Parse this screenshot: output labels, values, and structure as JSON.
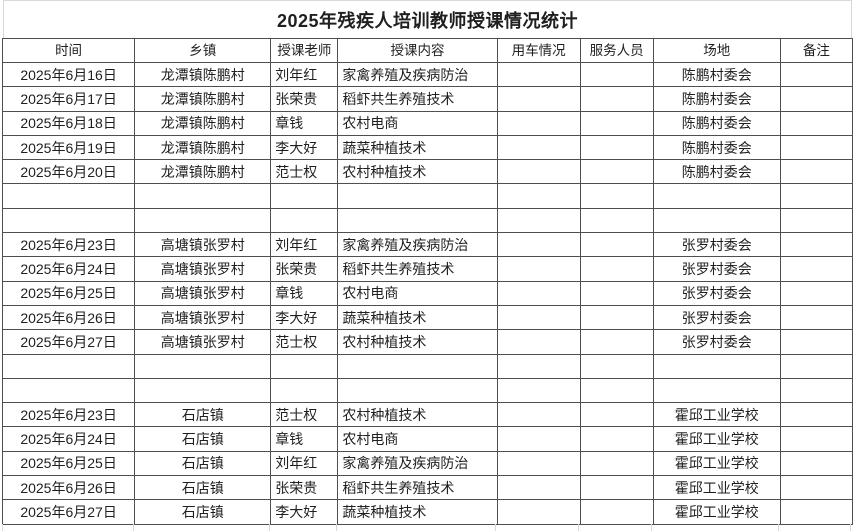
{
  "title": "2025年残疾人培训教师授课情况统计",
  "table": {
    "columns": [
      "时间",
      "乡镇",
      "授课老师",
      "授课内容",
      "用车情况",
      "服务人员",
      "场地",
      "备注"
    ],
    "rows": [
      [
        "2025年6月16日",
        "龙潭镇陈鹏村",
        "刘年红",
        "家禽养殖及疾病防治",
        "",
        "",
        "陈鹏村委会",
        ""
      ],
      [
        "2025年6月17日",
        "龙潭镇陈鹏村",
        "张荣贵",
        "稻虾共生养殖技术",
        "",
        "",
        "陈鹏村委会",
        ""
      ],
      [
        "2025年6月18日",
        "龙潭镇陈鹏村",
        "章钱",
        "农村电商",
        "",
        "",
        "陈鹏村委会",
        ""
      ],
      [
        "2025年6月19日",
        "龙潭镇陈鹏村",
        "李大好",
        "蔬菜种植技术",
        "",
        "",
        "陈鹏村委会",
        ""
      ],
      [
        "2025年6月20日",
        "龙潭镇陈鹏村",
        "范士权",
        "农村种植技术",
        "",
        "",
        "陈鹏村委会",
        ""
      ],
      [
        "",
        "",
        "",
        "",
        "",
        "",
        "",
        ""
      ],
      [
        "",
        "",
        "",
        "",
        "",
        "",
        "",
        ""
      ],
      [
        "2025年6月23日",
        "高塘镇张罗村",
        "刘年红",
        "家禽养殖及疾病防治",
        "",
        "",
        "张罗村委会",
        ""
      ],
      [
        "2025年6月24日",
        "高塘镇张罗村",
        "张荣贵",
        "稻虾共生养殖技术",
        "",
        "",
        "张罗村委会",
        ""
      ],
      [
        "2025年6月25日",
        "高塘镇张罗村",
        "章钱",
        "农村电商",
        "",
        "",
        "张罗村委会",
        ""
      ],
      [
        "2025年6月26日",
        "高塘镇张罗村",
        "李大好",
        "蔬菜种植技术",
        "",
        "",
        "张罗村委会",
        ""
      ],
      [
        "2025年6月27日",
        "高塘镇张罗村",
        "范士权",
        "农村种植技术",
        "",
        "",
        "张罗村委会",
        ""
      ],
      [
        "",
        "",
        "",
        "",
        "",
        "",
        "",
        ""
      ],
      [
        "",
        "",
        "",
        "",
        "",
        "",
        "",
        ""
      ],
      [
        "2025年6月23日",
        "石店镇",
        "范士权",
        "农村种植技术",
        "",
        "",
        "霍邱工业学校",
        ""
      ],
      [
        "2025年6月24日",
        "石店镇",
        "章钱",
        "农村电商",
        "",
        "",
        "霍邱工业学校",
        ""
      ],
      [
        "2025年6月25日",
        "石店镇",
        "刘年红",
        "家禽养殖及疾病防治",
        "",
        "",
        "霍邱工业学校",
        ""
      ],
      [
        "2025年6月26日",
        "石店镇",
        "张荣贵",
        "稻虾共生养殖技术",
        "",
        "",
        "霍邱工业学校",
        ""
      ],
      [
        "2025年6月27日",
        "石店镇",
        "李大好",
        "蔬菜种植技术",
        "",
        "",
        "霍邱工业学校",
        ""
      ]
    ]
  },
  "colors": {
    "border_dark": "#4f4f4f",
    "border_light": "#d9d9d9",
    "text": "#1f1f1f",
    "background": "#ffffff"
  }
}
